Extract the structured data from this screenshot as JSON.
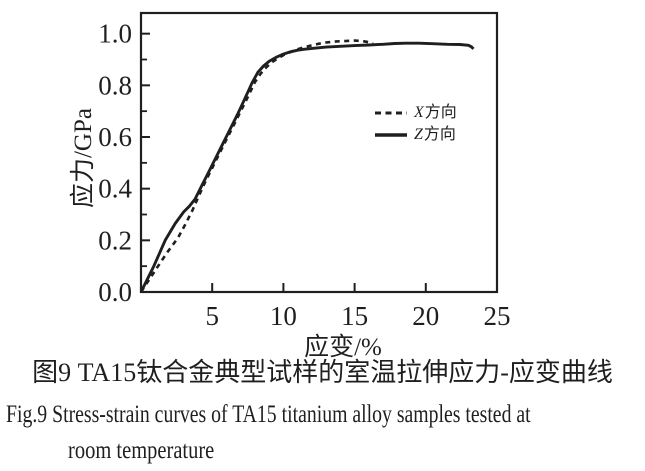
{
  "colors": {
    "ink": "#1f1f1f",
    "background": "#ffffff"
  },
  "captions": {
    "chinese": "图9 TA15钛合金典型试样的室温拉伸应力-应变曲线",
    "english_line1": "Fig.9  Stress-strain curves of TA15 titanium alloy samples tested at",
    "english_line2": "room temperature"
  },
  "chart_data": {
    "type": "line",
    "title": "",
    "xlabel": "应变/%",
    "ylabel": "应力/GPa",
    "xlim": [
      0,
      25
    ],
    "ylim": [
      0,
      1.08
    ],
    "grid": false,
    "legend_position": "inside-right-middle",
    "x_tick_values": [
      5,
      10,
      15,
      20,
      25
    ],
    "x_tick_labels": [
      "5",
      "10",
      "15",
      "20",
      "25"
    ],
    "y_tick_values": [
      0.0,
      0.2,
      0.4,
      0.6,
      0.8,
      1.0
    ],
    "y_tick_labels": [
      "0.0",
      "0.2",
      "0.4",
      "0.6",
      "0.8",
      "1.0"
    ],
    "y_minor_tick_values": [
      0.1,
      0.3,
      0.5,
      0.7,
      0.9
    ],
    "series": [
      {
        "name": "X方向",
        "letter": "X",
        "suffix": "方向",
        "style": "dashed",
        "color": "#1f1f1f",
        "points": [
          [
            0,
            0
          ],
          [
            0.9,
            0.075
          ],
          [
            1.8,
            0.15
          ],
          [
            2.6,
            0.21
          ],
          [
            3.1,
            0.26
          ],
          [
            3.6,
            0.315
          ],
          [
            4.0,
            0.365
          ],
          [
            4.5,
            0.425
          ],
          [
            5.0,
            0.48
          ],
          [
            5.5,
            0.535
          ],
          [
            6.0,
            0.59
          ],
          [
            6.5,
            0.645
          ],
          [
            7.0,
            0.7
          ],
          [
            7.5,
            0.755
          ],
          [
            8.0,
            0.812
          ],
          [
            8.4,
            0.845
          ],
          [
            8.8,
            0.87
          ],
          [
            9.2,
            0.89
          ],
          [
            9.6,
            0.904
          ],
          [
            10.0,
            0.917
          ],
          [
            10.5,
            0.929
          ],
          [
            11.0,
            0.94
          ],
          [
            11.5,
            0.948
          ],
          [
            12.0,
            0.955
          ],
          [
            12.5,
            0.961
          ],
          [
            13.0,
            0.966
          ],
          [
            13.5,
            0.969
          ],
          [
            14.0,
            0.971
          ],
          [
            14.5,
            0.972
          ],
          [
            15.0,
            0.973
          ],
          [
            15.5,
            0.972
          ],
          [
            16.0,
            0.967
          ],
          [
            16.3,
            0.961
          ]
        ]
      },
      {
        "name": "Z方向",
        "letter": "Z",
        "suffix": "方向",
        "style": "solid",
        "color": "#1f1f1f",
        "points": [
          [
            0,
            0
          ],
          [
            0.9,
            0.1
          ],
          [
            1.7,
            0.2
          ],
          [
            2.4,
            0.265
          ],
          [
            3.0,
            0.31
          ],
          [
            3.4,
            0.332
          ],
          [
            3.8,
            0.36
          ],
          [
            4.3,
            0.415
          ],
          [
            4.8,
            0.47
          ],
          [
            5.3,
            0.525
          ],
          [
            5.8,
            0.58
          ],
          [
            6.3,
            0.635
          ],
          [
            6.8,
            0.69
          ],
          [
            7.3,
            0.75
          ],
          [
            7.8,
            0.81
          ],
          [
            8.2,
            0.85
          ],
          [
            8.6,
            0.875
          ],
          [
            9.0,
            0.893
          ],
          [
            9.5,
            0.909
          ],
          [
            10.0,
            0.921
          ],
          [
            10.5,
            0.93
          ],
          [
            11.0,
            0.936
          ],
          [
            11.5,
            0.94
          ],
          [
            12.0,
            0.943
          ],
          [
            13.0,
            0.948
          ],
          [
            14.0,
            0.951
          ],
          [
            15.0,
            0.954
          ],
          [
            16.0,
            0.956
          ],
          [
            17.0,
            0.959
          ],
          [
            17.8,
            0.962
          ],
          [
            18.6,
            0.963
          ],
          [
            19.5,
            0.963
          ],
          [
            20.5,
            0.961
          ],
          [
            21.5,
            0.959
          ],
          [
            22.4,
            0.958
          ],
          [
            23.0,
            0.955
          ],
          [
            23.2,
            0.949
          ],
          [
            23.35,
            0.941
          ]
        ]
      }
    ]
  }
}
